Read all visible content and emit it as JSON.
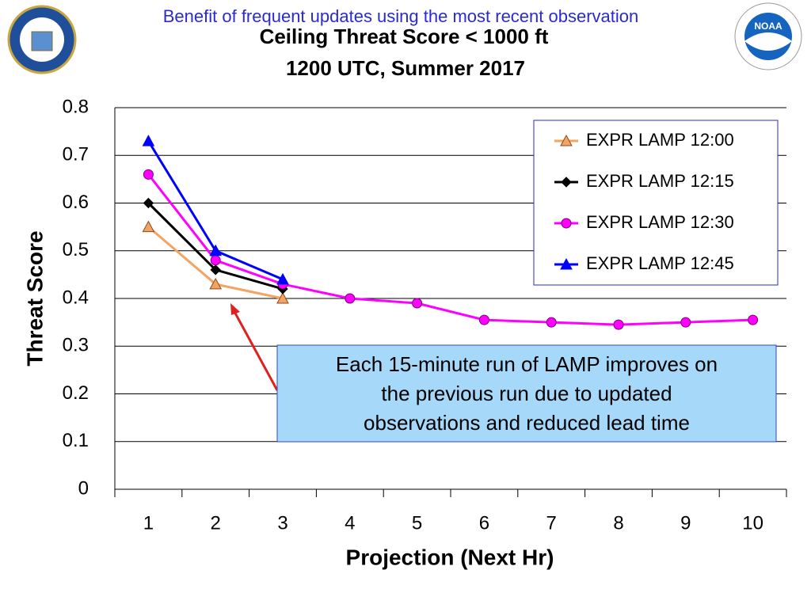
{
  "header": "Benefit of frequent updates using the most recent observation",
  "logos": {
    "noaa": "NOAA"
  },
  "chart_data": {
    "type": "line",
    "title": "Ceiling Threat Score < 1000 ft",
    "subtitle": "1200 UTC, Summer 2017",
    "ylabel": "Threat Score",
    "xlabel": "Projection (Next Hr)",
    "categories": [
      "1",
      "2",
      "3",
      "4",
      "5",
      "6",
      "7",
      "8",
      "9",
      "10"
    ],
    "ylim": [
      0,
      0.8
    ],
    "yticks": [
      0,
      0.1,
      0.2,
      0.3,
      0.4,
      0.5,
      0.6,
      0.7,
      0.8
    ],
    "grid": true,
    "legend": "upper right",
    "series": [
      {
        "name": "EXPR LAMP 12:00",
        "color": "#f4a460",
        "marker": "triangle",
        "values": [
          0.55,
          0.43,
          0.4,
          null,
          null,
          null,
          null,
          null,
          null,
          null
        ]
      },
      {
        "name": "EXPR LAMP 12:15",
        "color": "#000000",
        "marker": "diamond",
        "values": [
          0.6,
          0.46,
          0.42,
          null,
          null,
          null,
          null,
          null,
          null,
          null
        ]
      },
      {
        "name": "EXPR LAMP 12:30",
        "color": "#ff00ff",
        "marker": "circle",
        "values": [
          0.66,
          0.48,
          0.43,
          0.4,
          0.39,
          0.355,
          0.35,
          0.345,
          0.35,
          0.355
        ]
      },
      {
        "name": "EXPR LAMP 12:45",
        "color": "#0000ff",
        "marker": "triangle",
        "values": [
          0.73,
          0.5,
          0.44,
          null,
          null,
          null,
          null,
          null,
          null,
          null
        ]
      }
    ],
    "annotation": [
      "Each 15-minute run of LAMP improves on",
      "the previous run due to updated",
      "observations and reduced lead time"
    ]
  }
}
